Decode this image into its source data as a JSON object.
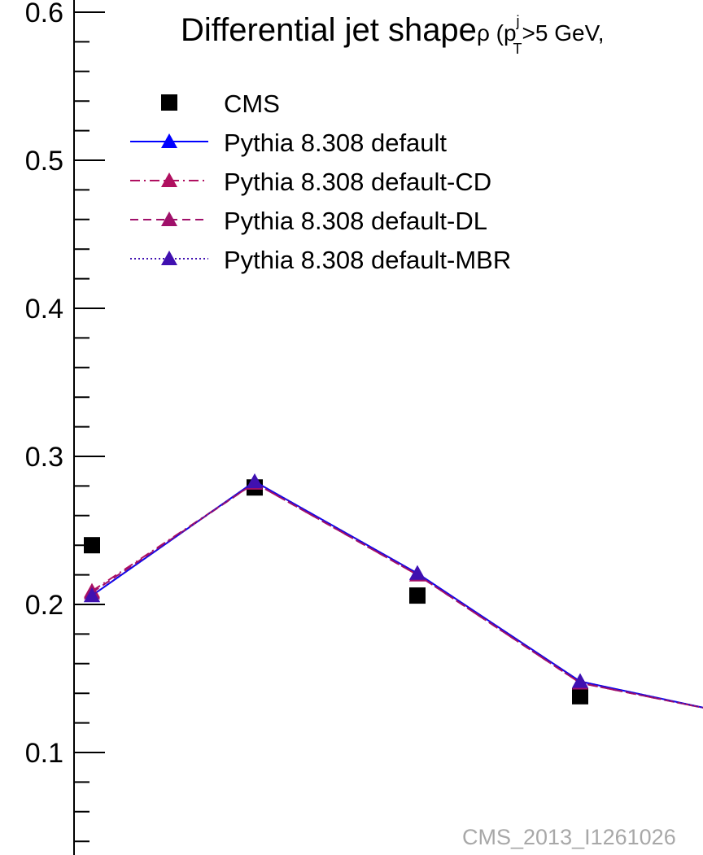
{
  "chart_data": {
    "type": "line",
    "title_main": "Differential jet shape",
    "title_rho": "ρ (p",
    "title_sup": "j",
    "title_sub": "T",
    "title_tail": ">5 GeV,",
    "ylim": [
      0.0,
      0.6
    ],
    "y_ticks": [
      "0.1",
      "0.2",
      "0.3",
      "0.4",
      "0.5",
      "0.6"
    ],
    "x": [
      0.05,
      0.15,
      0.25,
      0.35
    ],
    "series": [
      {
        "name": "CMS",
        "marker": "square",
        "color": "#000000",
        "values": [
          0.24,
          0.279,
          0.206,
          0.138
        ]
      },
      {
        "name": "Pythia 8.308 default",
        "marker": "triangle",
        "line": "solid",
        "color": "#0000ff",
        "values": [
          0.206,
          0.283,
          0.221,
          0.148
        ]
      },
      {
        "name": "Pythia 8.308 default-CD",
        "marker": "triangle",
        "line": "dashdot",
        "color": "#b01060",
        "values": [
          0.209,
          0.282,
          0.22,
          0.147
        ]
      },
      {
        "name": "Pythia 8.308 default-DL",
        "marker": "triangle",
        "line": "dashed",
        "color": "#a0106a",
        "values": [
          0.208,
          0.282,
          0.22,
          0.147
        ]
      },
      {
        "name": "Pythia 8.308 default-MBR",
        "marker": "triangle",
        "line": "dotted",
        "color": "#4010b0",
        "values": [
          0.206,
          0.283,
          0.221,
          0.148
        ]
      }
    ],
    "watermark": "CMS_2013_I1261026"
  }
}
